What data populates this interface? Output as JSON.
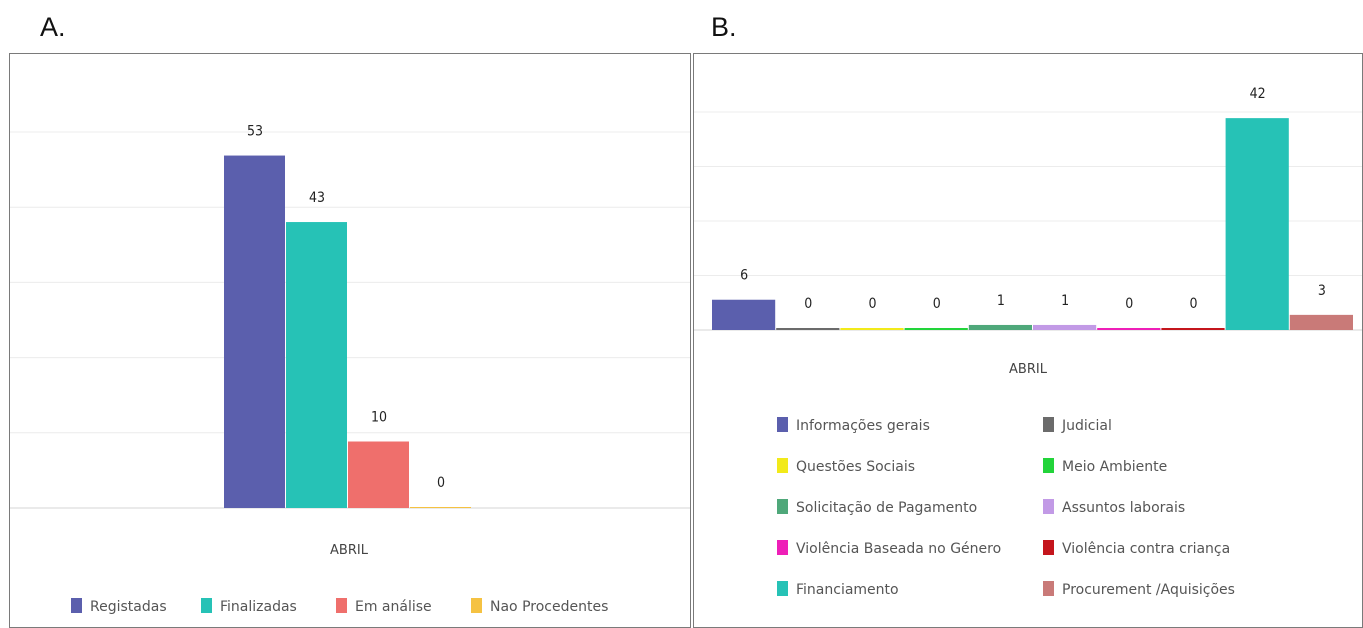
{
  "panels": {
    "a_label": "A.",
    "b_label": "B."
  },
  "chart_data": [
    {
      "type": "bar",
      "categories": [
        "ABRIL"
      ],
      "series": [
        {
          "name": "Registadas",
          "values": [
            53
          ],
          "color": "#5b5fad"
        },
        {
          "name": "Finalizadas",
          "values": [
            43
          ],
          "color": "#26c2b6"
        },
        {
          "name": "Em análise",
          "values": [
            10
          ],
          "color": "#ef6f6c"
        },
        {
          "name": "Nao Procedentes",
          "values": [
            0
          ],
          "color": "#f5c242"
        }
      ],
      "ylim": [
        0,
        60
      ],
      "grid": true,
      "legend_position": "bottom",
      "show_data_labels": true
    },
    {
      "type": "bar",
      "categories": [
        "ABRIL"
      ],
      "series": [
        {
          "name": "Informações gerais",
          "values": [
            6
          ],
          "color": "#5b5fad"
        },
        {
          "name": "Judicial",
          "values": [
            0
          ],
          "color": "#6b6b6b"
        },
        {
          "name": "Questões Sociais",
          "values": [
            0
          ],
          "color": "#f2ea1a"
        },
        {
          "name": "Meio Ambiente",
          "values": [
            0
          ],
          "color": "#22d43a"
        },
        {
          "name": "Solicitação de Pagamento",
          "values": [
            1
          ],
          "color": "#4fa87a"
        },
        {
          "name": "Assuntos laborais",
          "values": [
            1
          ],
          "color": "#c29ae6"
        },
        {
          "name": "Violência Baseada no Género",
          "values": [
            0
          ],
          "color": "#ee1fb8"
        },
        {
          "name": "Violência contra criança",
          "values": [
            0
          ],
          "color": "#c4151c"
        },
        {
          "name": "Financiamento",
          "values": [
            42
          ],
          "color": "#26c2b6"
        },
        {
          "name": "Procurement /Aquisições",
          "values": [
            3
          ],
          "color": "#c97a78"
        }
      ],
      "ylim": [
        0,
        45
      ],
      "grid": true,
      "legend_position": "bottom",
      "show_data_labels": true
    }
  ]
}
